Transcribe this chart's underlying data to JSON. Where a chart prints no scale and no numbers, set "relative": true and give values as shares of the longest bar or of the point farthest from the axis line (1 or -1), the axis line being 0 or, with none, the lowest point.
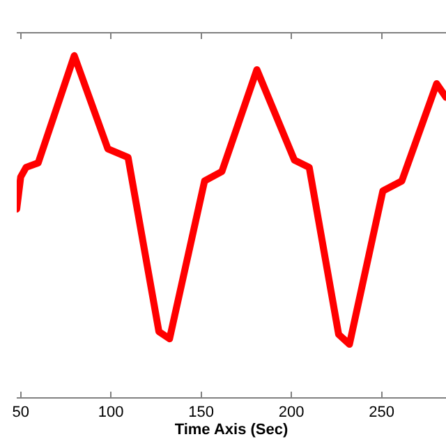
{
  "chart_data": {
    "type": "line",
    "relative": true,
    "xlabel": "Time Axis (Sec)",
    "x": [
      47.8,
      50,
      53,
      59.7,
      79.7,
      98.3,
      109.5,
      126.6,
      132.5,
      151.9,
      161.5,
      180.9,
      201.7,
      209.9,
      226.2,
      232.2,
      250.7,
      261.2,
      280.5,
      285.7
    ],
    "series": [
      {
        "color": "#ff0000",
        "values": [
          0.551,
          0.645,
          0.673,
          0.686,
          1.0,
          0.727,
          0.702,
          0.192,
          0.171,
          0.633,
          0.661,
          0.959,
          0.694,
          0.673,
          0.184,
          0.155,
          0.604,
          0.633,
          0.918,
          0.878
        ]
      }
    ],
    "xlim": [
      47.8,
      285.7
    ],
    "xticks": [
      50,
      100,
      150,
      200,
      250
    ],
    "marker": "none",
    "line_style": "solid"
  }
}
